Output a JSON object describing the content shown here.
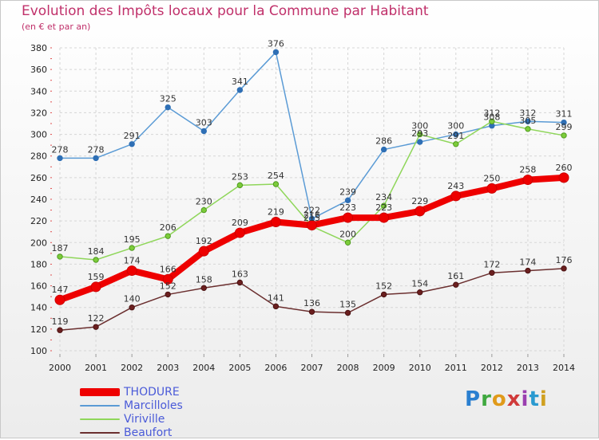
{
  "title": "Evolution des Impôts locaux pour la Commune par Habitant",
  "subtitle": "(en € et par an)",
  "logo_text": "Proxiti",
  "chart_data": {
    "type": "line",
    "title": "Evolution des Impôts locaux pour la Commune par Habitant",
    "subtitle": "(en € et par an)",
    "xlabel": "",
    "ylabel": "",
    "x": [
      "2000",
      "2001",
      "2002",
      "2003",
      "2004",
      "2005",
      "2006",
      "2007",
      "2008",
      "2009",
      "2010",
      "2011",
      "2012",
      "2013",
      "2014"
    ],
    "ylim": [
      100,
      380
    ],
    "yticks": [
      100,
      120,
      140,
      160,
      180,
      200,
      220,
      240,
      260,
      280,
      300,
      320,
      340,
      360,
      380
    ],
    "grid": true,
    "legend_position": "bottom-left",
    "series": [
      {
        "name": "Marcilloles",
        "color": "#5b9bd5",
        "values": [
          278,
          278,
          291,
          325,
          303,
          341,
          376,
          222,
          239,
          286,
          293,
          300,
          308,
          312,
          311
        ]
      },
      {
        "name": "Viriville",
        "color": "#8fd65a",
        "values": [
          187,
          184,
          195,
          206,
          230,
          253,
          254,
          215,
          200,
          234,
          300,
          291,
          312,
          305,
          299
        ]
      },
      {
        "name": "Beaufort",
        "color": "#6b2f2f",
        "values": [
          119,
          122,
          140,
          152,
          158,
          163,
          141,
          136,
          135,
          152,
          154,
          161,
          172,
          174,
          176
        ]
      },
      {
        "name": "THODURE",
        "color": "#ee0000",
        "values": [
          147,
          159,
          174,
          166,
          192,
          209,
          219,
          216,
          223,
          223,
          229,
          243,
          250,
          258,
          260
        ]
      }
    ],
    "legend_order": [
      "THODURE",
      "Marcilloles",
      "Viriville",
      "Beaufort"
    ]
  }
}
